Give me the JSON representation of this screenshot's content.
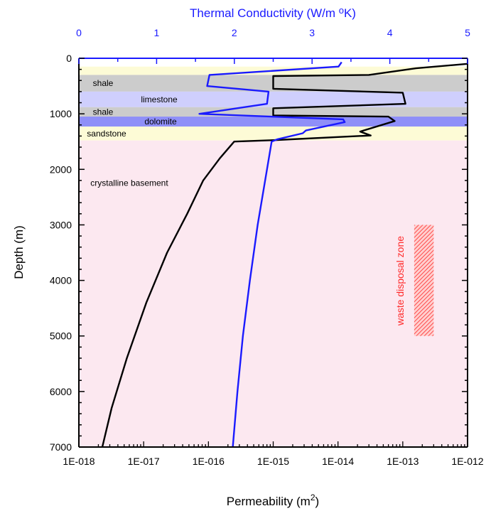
{
  "chart_data": {
    "type": "line",
    "y_axis": {
      "label": "Depth (m)",
      "range": [
        0,
        7000
      ],
      "inverted": true,
      "ticks": [
        0,
        1000,
        2000,
        3000,
        4000,
        5000,
        6000,
        7000
      ],
      "tick_labels": [
        "0",
        "1000",
        "2000",
        "3000",
        "4000",
        "5000",
        "6000",
        "7000"
      ]
    },
    "x_axis_bottom": {
      "label_main": "Permeability (m",
      "label_sup": "2",
      "label_end": ")",
      "scale": "log",
      "range": [
        1e-18,
        1e-12
      ],
      "ticks": [
        1e-18,
        1e-17,
        1e-16,
        1e-15,
        1e-14,
        1e-13,
        1e-12
      ],
      "tick_labels": [
        "1E-018",
        "1E-017",
        "1E-016",
        "1E-015",
        "1E-014",
        "1E-013",
        "1E-012"
      ]
    },
    "x_axis_top": {
      "label_main": "Thermal Conductivity (W/m ",
      "label_sup": "o",
      "label_end": "K)",
      "scale": "linear",
      "range": [
        0,
        5
      ],
      "ticks": [
        0,
        1,
        2,
        3,
        4,
        5
      ],
      "tick_labels": [
        "0",
        "1",
        "2",
        "3",
        "4",
        "5"
      ]
    },
    "layers": [
      {
        "top": 0,
        "bottom": 150,
        "color": "#ffffff",
        "label": ""
      },
      {
        "top": 150,
        "bottom": 300,
        "color": "#fdfbd6",
        "label": ""
      },
      {
        "top": 300,
        "bottom": 600,
        "color": "#cccccc",
        "label": "shale"
      },
      {
        "top": 600,
        "bottom": 880,
        "color": "#cfcffd",
        "label": "limestone"
      },
      {
        "top": 880,
        "bottom": 1050,
        "color": "#cccccc",
        "label": "shale"
      },
      {
        "top": 1050,
        "bottom": 1230,
        "color": "#8f8ff8",
        "label": "dolomite"
      },
      {
        "top": 1230,
        "bottom": 1480,
        "color": "#fdfbd6",
        "label": "sandstone"
      },
      {
        "top": 1480,
        "bottom": 7000,
        "color": "#fce8f0",
        "label": "crystalline basement"
      }
    ],
    "series": [
      {
        "color": "#000000",
        "axis": "bottom",
        "points": [
          [
            1e-12,
            100
          ],
          [
            1.6e-13,
            180
          ],
          [
            3e-14,
            300
          ],
          [
            1e-15,
            320
          ],
          [
            1e-15,
            550
          ],
          [
            1e-13,
            620
          ],
          [
            1.1e-13,
            820
          ],
          [
            1e-15,
            900
          ],
          [
            1e-15,
            1030
          ],
          [
            6e-14,
            1050
          ],
          [
            7.5e-14,
            1130
          ],
          [
            2.2e-14,
            1320
          ],
          [
            3.2e-14,
            1390
          ],
          [
            1e-15,
            1475
          ],
          [
            2.5e-16,
            1500
          ],
          [
            2.5e-16,
            1500
          ],
          [
            1.5e-16,
            1800
          ],
          [
            8.3e-17,
            2200
          ],
          [
            4.7e-17,
            2800
          ],
          [
            2.3e-17,
            3500
          ],
          [
            1.1e-17,
            4400
          ],
          [
            5.5e-18,
            5400
          ],
          [
            3.2e-18,
            6300
          ],
          [
            2.3e-18,
            7000
          ]
        ]
      },
      {
        "color": "#1a1aff",
        "axis": "top",
        "points": [
          [
            3.38,
            70
          ],
          [
            3.34,
            150
          ],
          [
            1.68,
            300
          ],
          [
            1.65,
            500
          ],
          [
            2.44,
            600
          ],
          [
            2.42,
            820
          ],
          [
            1.55,
            1000
          ],
          [
            3.4,
            1100
          ],
          [
            3.42,
            1150
          ],
          [
            2.92,
            1300
          ],
          [
            2.88,
            1350
          ],
          [
            2.55,
            1460
          ],
          [
            2.48,
            1500
          ],
          [
            2.42,
            2000
          ],
          [
            2.3,
            3000
          ],
          [
            2.2,
            4000
          ],
          [
            2.11,
            5000
          ],
          [
            2.04,
            6000
          ],
          [
            1.98,
            7000
          ]
        ]
      }
    ],
    "annotations": [
      {
        "text": "waste disposal zone",
        "color": "#ff2a2a"
      }
    ],
    "waste_zone": {
      "x_range": [
        1.5e-13,
        3e-13
      ],
      "depth_range": [
        3000,
        5000
      ],
      "color": "#ff6060"
    }
  }
}
